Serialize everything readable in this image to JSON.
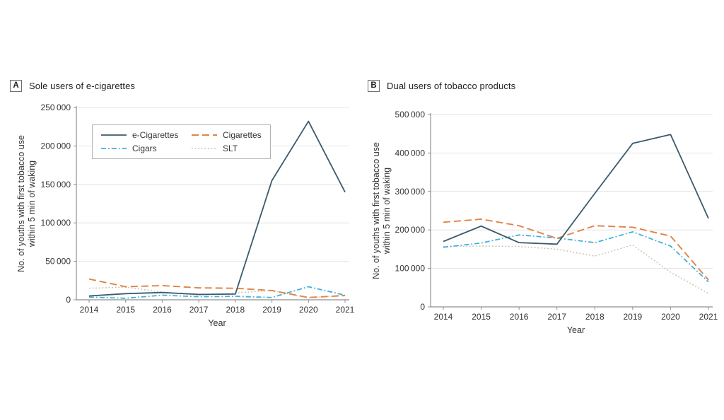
{
  "page": {
    "background": "#ffffff"
  },
  "panels": [
    {
      "badge": "A",
      "title": "Sole users of e-cigarettes"
    },
    {
      "badge": "B",
      "title": "Dual users of tobacco products"
    }
  ],
  "colors": {
    "axis": "#8f8f8f",
    "grid": "#e4e4e4",
    "tick_text": "#333333",
    "label_text": "#333333"
  },
  "chart_data": [
    {
      "type": "line",
      "panel": "A",
      "title": "Sole users of e-cigarettes",
      "xlabel": "Year",
      "ylabel": "No. of youths with first tobacco use within 5 min of waking",
      "ylabel_lines": [
        "No. of youths with first tobacco use",
        "within 5 min of waking"
      ],
      "x": [
        2014,
        2015,
        2016,
        2017,
        2018,
        2019,
        2020,
        2021
      ],
      "ylim": [
        0,
        250000
      ],
      "ytick_values": [
        0,
        50000,
        100000,
        150000,
        200000,
        250000
      ],
      "ytick_labels": [
        "0",
        "50 000",
        "100 000",
        "150 000",
        "200 000",
        "250 000"
      ],
      "grid": true,
      "legend": true,
      "legend_position": "top-left-inside",
      "series": [
        {
          "name": "e-Cigarettes",
          "color": "#3c5a6b",
          "line_style": "solid",
          "values": [
            5000,
            8000,
            9500,
            7000,
            7500,
            155000,
            232000,
            140000
          ]
        },
        {
          "name": "Cigarettes",
          "color": "#de8546",
          "line_style": "dashed",
          "values": [
            27000,
            17000,
            18500,
            15500,
            15000,
            12000,
            3000,
            5500
          ]
        },
        {
          "name": "Cigars",
          "color": "#41b0da",
          "line_style": "dash-dot",
          "values": [
            3500,
            2000,
            6000,
            4000,
            4500,
            3000,
            17000,
            6000
          ]
        },
        {
          "name": "SLT",
          "color": "#c9c0ab",
          "line_style": "dotted",
          "values": [
            15000,
            16500,
            10000,
            6000,
            9000,
            12000,
            2500,
            6000
          ]
        }
      ]
    },
    {
      "type": "line",
      "panel": "B",
      "title": "Dual users of tobacco products",
      "xlabel": "Year",
      "ylabel": "No. of youths with first tobacco use within 5 min of waking",
      "ylabel_lines": [
        "No. of youths with first tobacco use",
        "within 5 min of waking"
      ],
      "x": [
        2014,
        2015,
        2016,
        2017,
        2018,
        2019,
        2020,
        2021
      ],
      "ylim": [
        0,
        500000
      ],
      "ytick_values": [
        0,
        100000,
        200000,
        300000,
        400000,
        500000
      ],
      "ytick_labels": [
        "0",
        "100 000",
        "200 000",
        "300 000",
        "400 000",
        "500 000"
      ],
      "grid": true,
      "legend": false,
      "series": [
        {
          "name": "e-Cigarettes",
          "color": "#3c5a6b",
          "line_style": "solid",
          "values": [
            170000,
            210000,
            167000,
            163000,
            295000,
            425000,
            448000,
            230000
          ]
        },
        {
          "name": "Cigarettes",
          "color": "#de8546",
          "line_style": "dashed",
          "values": [
            220000,
            228000,
            211000,
            178000,
            211000,
            207000,
            184000,
            70000
          ]
        },
        {
          "name": "Cigars",
          "color": "#41b0da",
          "line_style": "dash-dot",
          "values": [
            155000,
            166000,
            187000,
            179000,
            167000,
            195000,
            158000,
            65000
          ]
        },
        {
          "name": "SLT",
          "color": "#c9c0ab",
          "line_style": "dotted",
          "values": [
            157000,
            158000,
            157000,
            150000,
            132000,
            161000,
            90000,
            35000
          ]
        }
      ]
    }
  ]
}
